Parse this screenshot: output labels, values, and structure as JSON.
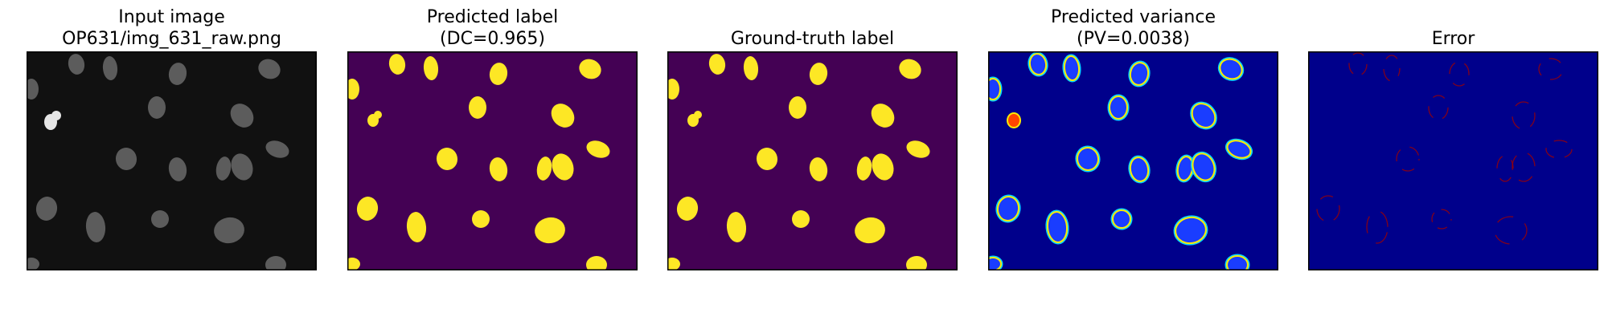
{
  "panels": [
    {
      "title_line1": "Input image",
      "title_line2": "OP631/img_631_raw.png"
    },
    {
      "title_line1": "Predicted label",
      "title_line2": "(DC=0.965)"
    },
    {
      "title_line1": "Ground-truth label",
      "title_line2": ""
    },
    {
      "title_line1": "Predicted variance",
      "title_line2": "(PV=0.0038)"
    },
    {
      "title_line1": "Error",
      "title_line2": ""
    }
  ],
  "colors": {
    "raw_background": "#111111",
    "raw_nucleus": "#6a6a6a",
    "raw_bright_nucleus": "#e6e6e6",
    "label_background": "#440154",
    "label_foreground": "#fde725",
    "variance_background": "#00008b",
    "variance_inner": "#1a3dff",
    "variance_rim": "#ffea00",
    "variance_rim_outer": "#00d5ff",
    "error_background": "#00008b",
    "error_mark": "#a00000"
  },
  "icons": [
    "nuclei-microscopy-image",
    "label-mask",
    "variance-heatmap",
    "error-map"
  ]
}
